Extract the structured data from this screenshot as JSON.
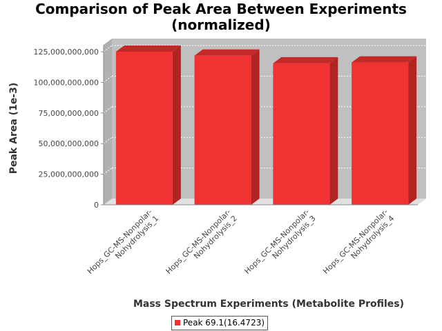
{
  "chart_data": {
    "type": "bar",
    "title_lines": [
      "Comparison of Peak Area Between Experiments",
      "(normalized)"
    ],
    "xlabel": "Mass Spectrum Experiments (Metabolite Profiles)",
    "ylabel": "Peak Area (1e-3)",
    "categories": [
      [
        "Hops_GC-MS-Nonpolar-",
        "Nohydrolysis_1"
      ],
      [
        "Hops_GC-MS-Nonpolar-",
        "Nohydrolysis_2"
      ],
      [
        "Hops_GC-MS-Nonpolar-",
        "Nohydrolysis_3"
      ],
      [
        "Hops_GC-MS-Nonpolar-",
        "Nohydrolysis_4"
      ]
    ],
    "series": [
      {
        "name": "Peak 69.1(16.4723)",
        "values": [
          125000000000,
          121800000000,
          115500000000,
          116200000000
        ]
      }
    ],
    "ylim": [
      0,
      125000000000
    ],
    "yticks": [
      0,
      25000000000,
      50000000000,
      75000000000,
      100000000000,
      125000000000
    ],
    "ytick_labels": [
      "0",
      "25,000,000,000",
      "50,000,000,000",
      "75,000,000,000",
      "100,000,000,000",
      "125,000,000,000"
    ],
    "grid": true,
    "legend_position": "bottom-center",
    "colors": {
      "bar_front": "#f03232",
      "bar_side": "#b12424",
      "bar_top": "#c42828",
      "plot_back": "#c0c0c0",
      "plot_floor": "#e0e0e0",
      "grid": "#ffffff"
    }
  }
}
